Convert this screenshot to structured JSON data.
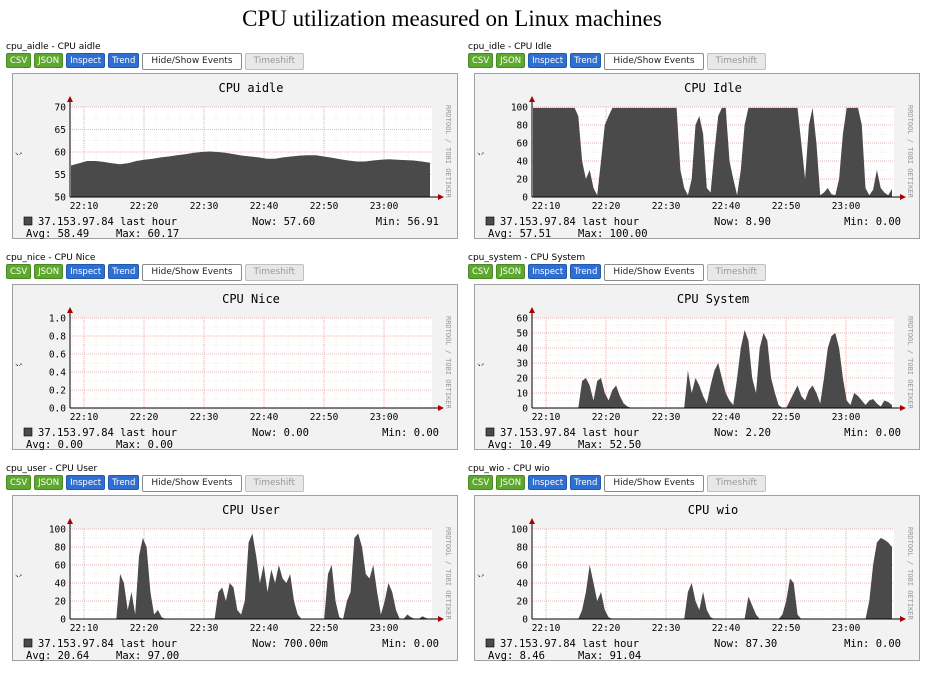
{
  "page_title": "CPU utilization measured on Linux machines",
  "buttons": {
    "csv": "CSV",
    "json": "JSON",
    "inspect": "Inspect",
    "trend": "Trend",
    "events": "Hide/Show Events",
    "timeshift": "Timeshift"
  },
  "colors": {
    "area": "#4a4a4a",
    "grid_major": "#e8a0a0",
    "grid_minor": "#f3d6d6",
    "plot_bg": "#ffffff",
    "frame_bg": "#f2f2f2",
    "axis_arrow": "#aa0000"
  },
  "side_label": "RRDTOOL / TOBI OETIKER",
  "chart_data": [
    {
      "id": "aidle",
      "graph_name": "cpu_aidle - CPU aidle",
      "title": "CPU aidle",
      "type": "area",
      "x_ticks": [
        "22:10",
        "22:20",
        "22:30",
        "22:40",
        "22:50",
        "23:00"
      ],
      "ylim": [
        50,
        70
      ],
      "y_ticks": [
        "50",
        "55",
        "60",
        "65",
        "70"
      ],
      "y_tick_values": [
        50,
        55,
        60,
        65,
        70
      ],
      "grid": true,
      "series": [
        {
          "values": [
            57,
            57.5,
            58,
            58,
            57.8,
            57.5,
            57.3,
            57.5,
            58,
            58.3,
            58.5,
            58.8,
            59,
            59.3,
            59.5,
            59.8,
            60,
            60.1,
            60,
            59.8,
            59.5,
            59.2,
            59,
            58.8,
            58.5,
            58.5,
            58.8,
            59,
            59.2,
            59.3,
            59.3,
            59,
            58.7,
            58.4,
            58.1,
            57.9,
            57.9,
            58.1,
            58.3,
            58.4,
            58.3,
            58.2,
            58.1,
            57.9,
            57.6
          ]
        }
      ],
      "legend": {
        "host": "37.153.97.84 last hour",
        "now": "Now:  57.60",
        "min": "Min:  56.91",
        "avg": "Avg:  58.49",
        "max": "Max:  60.17"
      }
    },
    {
      "id": "idle",
      "graph_name": "cpu_idle - CPU Idle",
      "title": "CPU Idle",
      "type": "area",
      "x_ticks": [
        "22:10",
        "22:20",
        "22:30",
        "22:40",
        "22:50",
        "23:00"
      ],
      "ylim": [
        0,
        100
      ],
      "y_ticks": [
        "0",
        "20",
        "40",
        "60",
        "80",
        "100"
      ],
      "y_tick_values": [
        0,
        20,
        40,
        60,
        80,
        100
      ],
      "grid": true,
      "series": [
        {
          "values": [
            99,
            99,
            99,
            99,
            99,
            99,
            99,
            99,
            99,
            99,
            99,
            99,
            90,
            40,
            20,
            30,
            10,
            2,
            40,
            80,
            90,
            99,
            99,
            99,
            99,
            99,
            99,
            99,
            99,
            99,
            99,
            99,
            99,
            99,
            99,
            99,
            99,
            99,
            99,
            30,
            10,
            2,
            20,
            80,
            90,
            70,
            10,
            5,
            50,
            90,
            99,
            99,
            40,
            20,
            2,
            30,
            80,
            99,
            99,
            99,
            99,
            99,
            99,
            99,
            99,
            99,
            99,
            99,
            99,
            99,
            99,
            60,
            20,
            80,
            99,
            60,
            2,
            5,
            10,
            3,
            2,
            20,
            70,
            99,
            99,
            99,
            99,
            80,
            10,
            2,
            8,
            30,
            10,
            5,
            2,
            9
          ]
        }
      ],
      "legend": {
        "host": "37.153.97.84 last hour",
        "now": "Now:   8.90",
        "min": "Min:   0.00",
        "avg": "Avg:  57.51",
        "max": "Max: 100.00"
      }
    },
    {
      "id": "nice",
      "graph_name": "cpu_nice - CPU Nice",
      "title": "CPU Nice",
      "type": "area",
      "x_ticks": [
        "22:10",
        "22:20",
        "22:30",
        "22:40",
        "22:50",
        "23:00"
      ],
      "ylim": [
        0,
        1
      ],
      "y_ticks": [
        "0.0",
        "0.2",
        "0.4",
        "0.6",
        "0.8",
        "1.0"
      ],
      "y_tick_values": [
        0,
        0.2,
        0.4,
        0.6,
        0.8,
        1.0
      ],
      "grid": true,
      "series": [
        {
          "values": [
            0,
            0,
            0,
            0,
            0,
            0,
            0,
            0,
            0,
            0
          ]
        }
      ],
      "legend": {
        "host": "37.153.97.84 last hour",
        "now": "Now:   0.00",
        "min": "Min:   0.00",
        "avg": "Avg:   0.00",
        "max": "Max:   0.00"
      }
    },
    {
      "id": "system",
      "graph_name": "cpu_system - CPU System",
      "title": "CPU System",
      "type": "area",
      "x_ticks": [
        "22:10",
        "22:20",
        "22:30",
        "22:40",
        "22:50",
        "23:00"
      ],
      "ylim": [
        0,
        60
      ],
      "y_ticks": [
        "0",
        "10",
        "20",
        "30",
        "40",
        "50",
        "60"
      ],
      "y_tick_values": [
        0,
        10,
        20,
        30,
        40,
        50,
        60
      ],
      "grid": true,
      "series": [
        {
          "values": [
            0,
            0,
            0,
            0,
            0,
            0,
            0,
            0,
            0,
            0,
            0,
            0,
            0,
            18,
            20,
            15,
            5,
            18,
            20,
            10,
            5,
            12,
            15,
            8,
            3,
            1,
            0,
            0,
            0,
            0,
            0,
            0,
            0,
            0,
            0,
            0,
            0,
            0,
            0,
            0,
            0,
            25,
            10,
            20,
            15,
            8,
            3,
            15,
            25,
            30,
            20,
            10,
            5,
            2,
            20,
            40,
            52,
            45,
            20,
            10,
            40,
            50,
            45,
            20,
            10,
            2,
            0,
            0,
            5,
            10,
            15,
            8,
            5,
            12,
            15,
            10,
            3,
            20,
            40,
            48,
            50,
            40,
            20,
            5,
            2,
            10,
            8,
            5,
            2,
            5,
            6,
            3,
            1,
            5,
            4,
            2
          ]
        }
      ],
      "legend": {
        "host": "37.153.97.84 last hour",
        "now": "Now:   2.20",
        "min": "Min:   0.00",
        "avg": "Avg:  10.49",
        "max": "Max:  52.50"
      }
    },
    {
      "id": "user",
      "graph_name": "cpu_user - CPU User",
      "title": "CPU User",
      "type": "area",
      "x_ticks": [
        "22:10",
        "22:20",
        "22:30",
        "22:40",
        "22:50",
        "23:00"
      ],
      "ylim": [
        0,
        100
      ],
      "y_ticks": [
        "0",
        "20",
        "40",
        "60",
        "80",
        "100"
      ],
      "y_tick_values": [
        0,
        20,
        40,
        60,
        80,
        100
      ],
      "grid": true,
      "series": [
        {
          "values": [
            0,
            0,
            0,
            0,
            0,
            0,
            0,
            0,
            0,
            0,
            0,
            0,
            0,
            50,
            40,
            10,
            30,
            5,
            70,
            90,
            80,
            30,
            5,
            10,
            2,
            0,
            0,
            0,
            0,
            0,
            0,
            0,
            0,
            0,
            0,
            0,
            0,
            0,
            0,
            30,
            35,
            20,
            40,
            35,
            10,
            5,
            20,
            85,
            95,
            70,
            40,
            60,
            30,
            55,
            40,
            60,
            45,
            40,
            50,
            20,
            5,
            0,
            0,
            0,
            0,
            0,
            0,
            0,
            50,
            60,
            20,
            2,
            0,
            20,
            30,
            90,
            95,
            80,
            50,
            45,
            60,
            30,
            5,
            20,
            40,
            30,
            10,
            0,
            0,
            5,
            2,
            0,
            0,
            3,
            1,
            0
          ]
        }
      ],
      "legend": {
        "host": "37.153.97.84 last hour",
        "now": "Now: 700.00m",
        "min": "Min:   0.00",
        "avg": "Avg:  20.64",
        "max": "Max:  97.00"
      }
    },
    {
      "id": "wio",
      "graph_name": "cpu_wio - CPU wio",
      "title": "CPU wio",
      "type": "area",
      "x_ticks": [
        "22:10",
        "22:20",
        "22:30",
        "22:40",
        "22:50",
        "23:00"
      ],
      "ylim": [
        0,
        100
      ],
      "y_ticks": [
        "0",
        "20",
        "40",
        "60",
        "80",
        "100"
      ],
      "y_tick_values": [
        0,
        20,
        40,
        60,
        80,
        100
      ],
      "grid": true,
      "series": [
        {
          "values": [
            0,
            0,
            0,
            0,
            0,
            0,
            0,
            0,
            0,
            0,
            0,
            0,
            0,
            10,
            30,
            60,
            40,
            20,
            30,
            10,
            2,
            0,
            0,
            0,
            0,
            0,
            0,
            0,
            0,
            0,
            0,
            0,
            0,
            0,
            0,
            0,
            0,
            0,
            0,
            0,
            0,
            30,
            40,
            20,
            10,
            30,
            10,
            2,
            0,
            0,
            0,
            0,
            0,
            0,
            0,
            0,
            0,
            25,
            15,
            5,
            0,
            0,
            0,
            0,
            0,
            0,
            5,
            20,
            45,
            40,
            5,
            0,
            0,
            0,
            0,
            0,
            0,
            0,
            0,
            0,
            0,
            0,
            0,
            0,
            0,
            0,
            0,
            0,
            0,
            20,
            60,
            85,
            90,
            88,
            85,
            80
          ]
        }
      ],
      "legend": {
        "host": "37.153.97.84 last hour",
        "now": "Now:  87.30",
        "min": "Min:   0.00",
        "avg": "Avg:   8.46",
        "max": "Max:  91.04"
      }
    }
  ]
}
